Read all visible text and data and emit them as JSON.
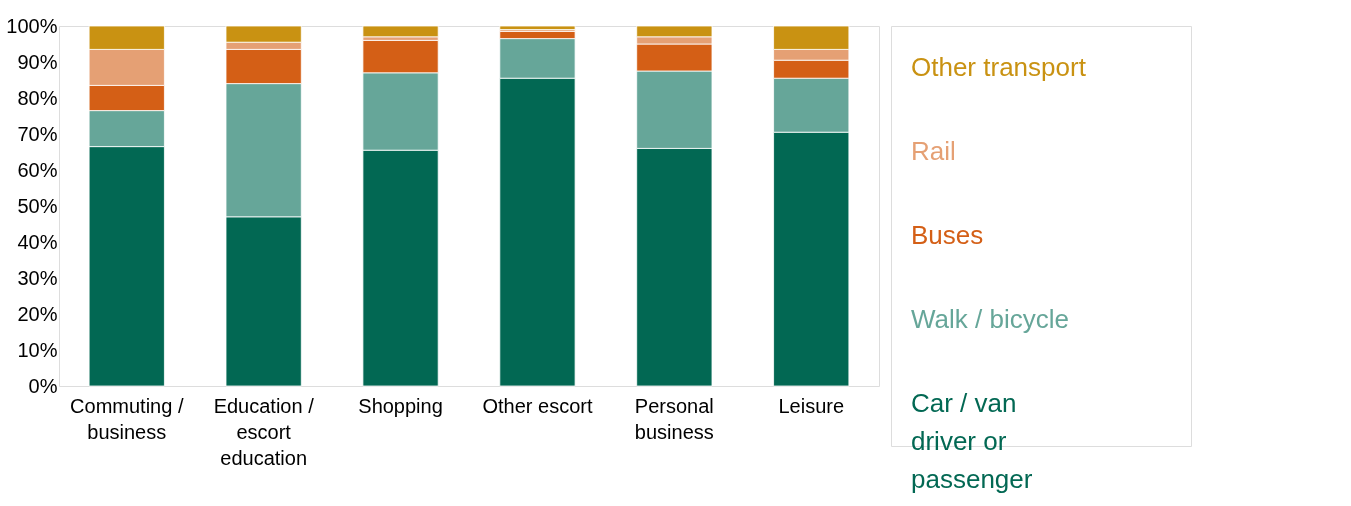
{
  "chart_data": {
    "type": "bar",
    "stacked": true,
    "categories": [
      "Commuting / business",
      "Education / escort education",
      "Shopping",
      "Other escort",
      "Personal business",
      "Leisure"
    ],
    "series": [
      {
        "name": "Car / van driver or passenger",
        "color": "#026853",
        "values": [
          66.5,
          47,
          65.5,
          85.5,
          66,
          70.5
        ]
      },
      {
        "name": "Walk / bicycle",
        "color": "#66a699",
        "values": [
          10,
          37,
          21.5,
          11,
          21.5,
          15
        ]
      },
      {
        "name": "Buses",
        "color": "#d45f16",
        "values": [
          7,
          9.5,
          9,
          2,
          7.5,
          5
        ]
      },
      {
        "name": "Rail",
        "color": "#e5a074",
        "values": [
          10,
          2,
          1,
          0.5,
          2,
          3
        ]
      },
      {
        "name": "Other transport",
        "color": "#c99212",
        "values": [
          6.5,
          4.5,
          3,
          1,
          3,
          6.5
        ]
      }
    ],
    "ylim": [
      0,
      100
    ],
    "yticks": [
      {
        "value": 0,
        "label": "0%"
      },
      {
        "value": 10,
        "label": "10%"
      },
      {
        "value": 20,
        "label": "20%"
      },
      {
        "value": 30,
        "label": "30%"
      },
      {
        "value": 40,
        "label": "40%"
      },
      {
        "value": 50,
        "label": "50%"
      },
      {
        "value": 60,
        "label": "60%"
      },
      {
        "value": 70,
        "label": "70%"
      },
      {
        "value": 80,
        "label": "80%"
      },
      {
        "value": 90,
        "label": "90%"
      },
      {
        "value": 100,
        "label": "100%"
      }
    ],
    "grid": false,
    "legend": "right"
  }
}
